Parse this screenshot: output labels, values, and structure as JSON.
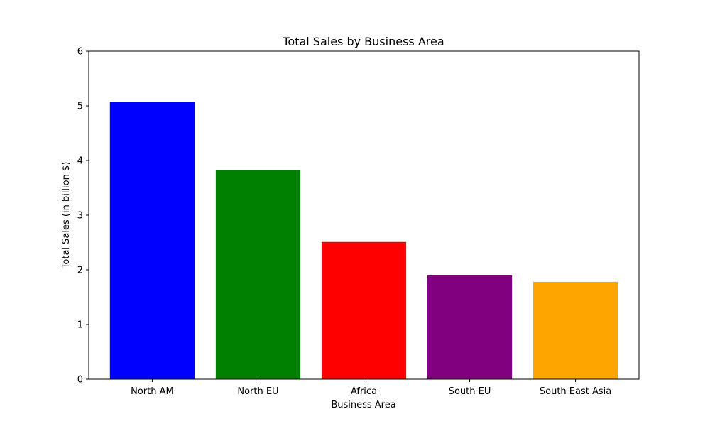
{
  "chart_data": {
    "type": "bar",
    "title": "Total Sales by Business Area",
    "xlabel": "Business Area",
    "ylabel": "Total Sales (in billion $)",
    "categories": [
      "North AM",
      "North EU",
      "Africa",
      "South EU",
      "South East Asia"
    ],
    "values": [
      5.07,
      3.82,
      2.51,
      1.9,
      1.78
    ],
    "colors": [
      "#0000ff",
      "#008000",
      "#ff0000",
      "#800080",
      "#ffa500"
    ],
    "ylim": [
      0,
      6
    ],
    "yticks": [
      "0",
      "1",
      "2",
      "3",
      "4",
      "5",
      "6"
    ],
    "grid": false,
    "legend": "none"
  }
}
